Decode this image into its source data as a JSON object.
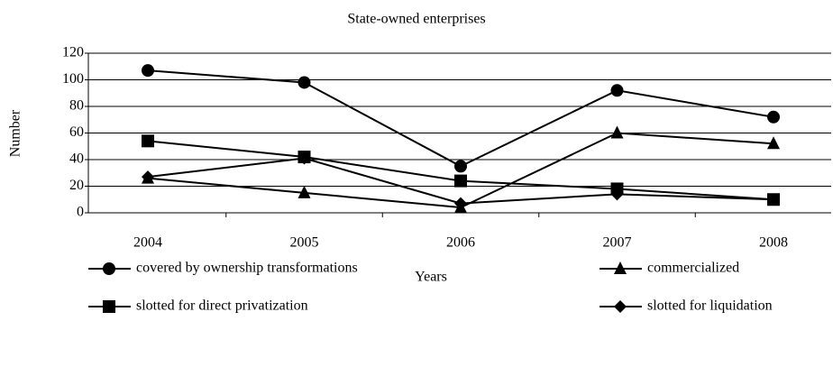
{
  "chart_data": {
    "type": "line",
    "title": "State-owned enterprises",
    "xlabel": "Years",
    "ylabel": "Number",
    "categories": [
      "2004",
      "2005",
      "2006",
      "2007",
      "2008"
    ],
    "series": [
      {
        "name": "covered by ownership transformations",
        "color": "#000000",
        "marker": "circle",
        "values": [
          107,
          98,
          35,
          92,
          72
        ]
      },
      {
        "name": "commercialized",
        "color": "#000000",
        "marker": "triangle",
        "values": [
          26,
          15,
          4,
          60,
          52
        ]
      },
      {
        "name": "slotted for direct privatization",
        "color": "#000000",
        "marker": "square",
        "values": [
          54,
          42,
          24,
          18,
          10
        ]
      },
      {
        "name": "slotted for liquidation",
        "color": "#000000",
        "marker": "diamond",
        "values": [
          27,
          41,
          7,
          14,
          10
        ]
      }
    ],
    "ylim": [
      0,
      120
    ],
    "yticks": [
      0,
      20,
      40,
      60,
      80,
      100,
      120
    ],
    "grid": true,
    "legend": "bottom"
  }
}
